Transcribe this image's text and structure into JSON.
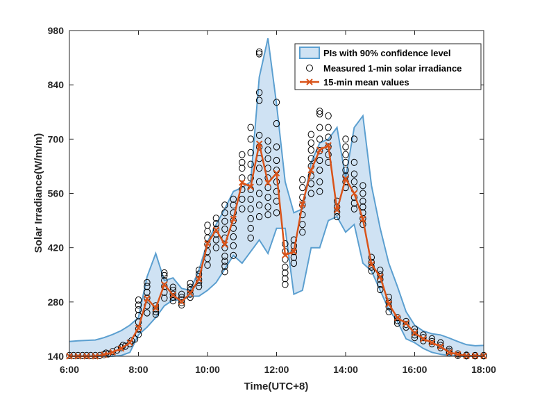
{
  "chart_data": {
    "type": "line",
    "xlabel": "Time(UTC+8)",
    "ylabel": "Solar Irradiance(W/m/m)",
    "xlim": [
      6,
      18
    ],
    "ylim": [
      140,
      980
    ],
    "x_ticks": [
      6,
      8,
      10,
      12,
      14,
      16,
      18
    ],
    "x_tick_labels": [
      "6:00",
      "8:00",
      "10:00",
      "12:00",
      "14:00",
      "16:00",
      "18:00"
    ],
    "y_ticks": [
      140,
      280,
      420,
      560,
      700,
      840,
      980
    ],
    "y_tick_labels": [
      "140",
      "280",
      "420",
      "560",
      "700",
      "840",
      "980"
    ],
    "grid": false,
    "legend_position": "top-right",
    "legend": [
      "PIs with 90% confidence level",
      "Measured 1-min solar irradiance",
      "15-min mean values"
    ],
    "colors": {
      "band_fill": "#cfe2f3",
      "band_edge": "#5b9fd0",
      "mean_line": "#d95319",
      "scatter": "#000000"
    },
    "time_grid": [
      6.0,
      6.25,
      6.5,
      6.75,
      7.0,
      7.25,
      7.5,
      7.75,
      8.0,
      8.25,
      8.5,
      8.75,
      9.0,
      9.25,
      9.5,
      9.75,
      10.0,
      10.25,
      10.5,
      10.75,
      11.0,
      11.25,
      11.5,
      11.75,
      12.0,
      12.25,
      12.5,
      12.75,
      13.0,
      13.25,
      13.5,
      13.75,
      14.0,
      14.25,
      14.5,
      14.75,
      15.0,
      15.25,
      15.5,
      15.75,
      16.0,
      16.25,
      16.5,
      16.75,
      17.0,
      17.25,
      17.5,
      17.75,
      18.0
    ],
    "pi_upper": [
      178,
      180,
      181,
      182,
      188,
      196,
      206,
      220,
      240,
      345,
      405,
      335,
      342,
      315,
      310,
      362,
      435,
      480,
      520,
      565,
      575,
      590,
      860,
      960,
      790,
      590,
      510,
      520,
      640,
      690,
      700,
      730,
      600,
      730,
      760,
      580,
      470,
      380,
      320,
      255,
      220,
      205,
      198,
      195,
      187,
      178,
      170,
      167,
      168
    ],
    "pi_lower": [
      140,
      140,
      140,
      140,
      140,
      140,
      142,
      150,
      195,
      215,
      240,
      270,
      285,
      285,
      295,
      295,
      310,
      330,
      365,
      400,
      380,
      410,
      440,
      405,
      470,
      470,
      300,
      310,
      420,
      420,
      490,
      500,
      460,
      480,
      380,
      360,
      310,
      260,
      230,
      185,
      175,
      160,
      150,
      145,
      142,
      140,
      140,
      140,
      140
    ],
    "mean_15min": [
      140,
      140,
      140,
      140,
      144,
      150,
      160,
      175,
      213,
      289,
      264,
      325,
      298,
      281,
      302,
      339,
      431,
      466,
      428,
      494,
      588,
      577,
      688,
      587,
      612,
      401,
      410,
      532,
      620,
      672,
      684,
      517,
      598,
      560,
      494,
      377,
      345,
      275,
      239,
      225,
      200,
      185,
      175,
      165,
      150,
      145,
      141,
      141,
      141
    ],
    "measured_1min": [
      [
        6.0,
        142
      ],
      [
        6.12,
        142
      ],
      [
        6.25,
        142
      ],
      [
        6.38,
        142
      ],
      [
        6.5,
        142
      ],
      [
        6.62,
        142
      ],
      [
        6.75,
        142
      ],
      [
        6.88,
        142
      ],
      [
        7.0,
        144
      ],
      [
        7.06,
        148
      ],
      [
        7.12,
        146
      ],
      [
        7.25,
        152
      ],
      [
        7.38,
        156
      ],
      [
        7.5,
        162
      ],
      [
        7.55,
        168
      ],
      [
        7.62,
        166
      ],
      [
        7.75,
        172
      ],
      [
        7.8,
        180
      ],
      [
        7.9,
        184
      ],
      [
        8.0,
        196
      ],
      [
        8.0,
        210
      ],
      [
        8.0,
        228
      ],
      [
        8.0,
        245
      ],
      [
        8.0,
        260
      ],
      [
        8.0,
        272
      ],
      [
        8.0,
        285
      ],
      [
        8.25,
        252
      ],
      [
        8.25,
        270
      ],
      [
        8.25,
        290
      ],
      [
        8.25,
        305
      ],
      [
        8.25,
        320
      ],
      [
        8.25,
        330
      ],
      [
        8.5,
        248
      ],
      [
        8.5,
        255
      ],
      [
        8.5,
        262
      ],
      [
        8.5,
        270
      ],
      [
        8.75,
        290
      ],
      [
        8.75,
        305
      ],
      [
        8.75,
        320
      ],
      [
        8.75,
        335
      ],
      [
        8.75,
        348
      ],
      [
        8.75,
        355
      ],
      [
        9.0,
        283
      ],
      [
        9.0,
        292
      ],
      [
        9.0,
        300
      ],
      [
        9.0,
        310
      ],
      [
        9.0,
        318
      ],
      [
        9.25,
        272
      ],
      [
        9.25,
        278
      ],
      [
        9.25,
        285
      ],
      [
        9.25,
        292
      ],
      [
        9.25,
        300
      ],
      [
        9.5,
        292
      ],
      [
        9.5,
        300
      ],
      [
        9.5,
        310
      ],
      [
        9.5,
        318
      ],
      [
        9.5,
        328
      ],
      [
        9.75,
        320
      ],
      [
        9.75,
        330
      ],
      [
        9.75,
        338
      ],
      [
        9.75,
        352
      ],
      [
        9.75,
        362
      ],
      [
        10.0,
        375
      ],
      [
        10.0,
        392
      ],
      [
        10.0,
        410
      ],
      [
        10.0,
        428
      ],
      [
        10.0,
        445
      ],
      [
        10.0,
        462
      ],
      [
        10.0,
        478
      ],
      [
        10.25,
        420
      ],
      [
        10.25,
        440
      ],
      [
        10.25,
        455
      ],
      [
        10.25,
        468
      ],
      [
        10.25,
        482
      ],
      [
        10.25,
        496
      ],
      [
        10.5,
        358
      ],
      [
        10.5,
        372
      ],
      [
        10.5,
        385
      ],
      [
        10.5,
        398
      ],
      [
        10.5,
        420
      ],
      [
        10.5,
        445
      ],
      [
        10.5,
        468
      ],
      [
        10.5,
        488
      ],
      [
        10.5,
        510
      ],
      [
        10.5,
        530
      ],
      [
        10.75,
        400
      ],
      [
        10.75,
        425
      ],
      [
        10.75,
        448
      ],
      [
        10.75,
        470
      ],
      [
        10.75,
        490
      ],
      [
        10.75,
        510
      ],
      [
        10.75,
        530
      ],
      [
        10.75,
        545
      ],
      [
        11.0,
        520
      ],
      [
        11.0,
        545
      ],
      [
        11.0,
        570
      ],
      [
        11.0,
        600
      ],
      [
        11.0,
        625
      ],
      [
        11.0,
        640
      ],
      [
        11.0,
        660
      ],
      [
        11.25,
        445
      ],
      [
        11.25,
        470
      ],
      [
        11.25,
        495
      ],
      [
        11.25,
        520
      ],
      [
        11.25,
        545
      ],
      [
        11.25,
        570
      ],
      [
        11.25,
        600
      ],
      [
        11.25,
        635
      ],
      [
        11.25,
        665
      ],
      [
        11.25,
        700
      ],
      [
        11.25,
        730
      ],
      [
        11.5,
        500
      ],
      [
        11.5,
        530
      ],
      [
        11.5,
        560
      ],
      [
        11.5,
        590
      ],
      [
        11.5,
        625
      ],
      [
        11.5,
        650
      ],
      [
        11.5,
        680
      ],
      [
        11.5,
        710
      ],
      [
        11.5,
        800
      ],
      [
        11.5,
        820
      ],
      [
        11.5,
        920
      ],
      [
        11.5,
        925
      ],
      [
        11.75,
        505
      ],
      [
        11.75,
        525
      ],
      [
        11.75,
        550
      ],
      [
        11.75,
        575
      ],
      [
        11.75,
        600
      ],
      [
        11.75,
        625
      ],
      [
        11.75,
        650
      ],
      [
        11.75,
        672
      ],
      [
        11.75,
        695
      ],
      [
        12.0,
        510
      ],
      [
        12.0,
        540
      ],
      [
        12.0,
        565
      ],
      [
        12.0,
        590
      ],
      [
        12.0,
        620
      ],
      [
        12.0,
        645
      ],
      [
        12.0,
        680
      ],
      [
        12.0,
        740
      ],
      [
        12.0,
        795
      ],
      [
        12.25,
        325
      ],
      [
        12.25,
        340
      ],
      [
        12.25,
        355
      ],
      [
        12.25,
        370
      ],
      [
        12.25,
        390
      ],
      [
        12.25,
        410
      ],
      [
        12.25,
        430
      ],
      [
        12.5,
        380
      ],
      [
        12.5,
        395
      ],
      [
        12.5,
        410
      ],
      [
        12.5,
        425
      ],
      [
        12.5,
        440
      ],
      [
        12.75,
        460
      ],
      [
        12.75,
        480
      ],
      [
        12.75,
        505
      ],
      [
        12.75,
        530
      ],
      [
        12.75,
        550
      ],
      [
        12.75,
        575
      ],
      [
        12.75,
        595
      ],
      [
        13.0,
        560
      ],
      [
        13.0,
        585
      ],
      [
        13.0,
        605
      ],
      [
        13.0,
        630
      ],
      [
        13.0,
        650
      ],
      [
        13.0,
        672
      ],
      [
        13.0,
        690
      ],
      [
        13.0,
        712
      ],
      [
        13.25,
        565
      ],
      [
        13.25,
        590
      ],
      [
        13.25,
        620
      ],
      [
        13.25,
        645
      ],
      [
        13.25,
        670
      ],
      [
        13.25,
        700
      ],
      [
        13.25,
        730
      ],
      [
        13.25,
        765
      ],
      [
        13.25,
        772
      ],
      [
        13.5,
        640
      ],
      [
        13.5,
        660
      ],
      [
        13.5,
        680
      ],
      [
        13.5,
        705
      ],
      [
        13.5,
        730
      ],
      [
        13.5,
        760
      ],
      [
        13.75,
        500
      ],
      [
        13.75,
        512
      ],
      [
        13.75,
        525
      ],
      [
        13.75,
        540
      ],
      [
        14.0,
        575
      ],
      [
        14.0,
        590
      ],
      [
        14.0,
        605
      ],
      [
        14.0,
        620
      ],
      [
        14.0,
        640
      ],
      [
        14.0,
        660
      ],
      [
        14.0,
        680
      ],
      [
        14.0,
        700
      ],
      [
        14.25,
        520
      ],
      [
        14.25,
        535
      ],
      [
        14.25,
        550
      ],
      [
        14.25,
        570
      ],
      [
        14.25,
        590
      ],
      [
        14.25,
        610
      ],
      [
        14.25,
        640
      ],
      [
        14.25,
        700
      ],
      [
        14.5,
        480
      ],
      [
        14.5,
        495
      ],
      [
        14.5,
        510
      ],
      [
        14.5,
        525
      ],
      [
        14.5,
        540
      ],
      [
        14.5,
        560
      ],
      [
        14.5,
        580
      ],
      [
        14.75,
        360
      ],
      [
        14.75,
        370
      ],
      [
        14.75,
        382
      ],
      [
        14.75,
        395
      ],
      [
        15.0,
        312
      ],
      [
        15.0,
        325
      ],
      [
        15.0,
        338
      ],
      [
        15.0,
        350
      ],
      [
        15.0,
        362
      ],
      [
        15.25,
        255
      ],
      [
        15.25,
        268
      ],
      [
        15.25,
        280
      ],
      [
        15.25,
        292
      ],
      [
        15.5,
        225
      ],
      [
        15.5,
        232
      ],
      [
        15.5,
        240
      ],
      [
        15.75,
        215
      ],
      [
        15.75,
        222
      ],
      [
        15.75,
        230
      ],
      [
        16.0,
        188
      ],
      [
        16.0,
        195
      ],
      [
        16.0,
        202
      ],
      [
        16.0,
        210
      ],
      [
        16.25,
        180
      ],
      [
        16.25,
        188
      ],
      [
        16.25,
        195
      ],
      [
        16.5,
        172
      ],
      [
        16.5,
        178
      ],
      [
        16.5,
        185
      ],
      [
        16.75,
        162
      ],
      [
        16.75,
        168
      ],
      [
        16.75,
        175
      ],
      [
        17.0,
        148
      ],
      [
        17.0,
        153
      ],
      [
        17.0,
        158
      ],
      [
        17.25,
        142
      ],
      [
        17.25,
        146
      ],
      [
        17.5,
        141
      ],
      [
        17.5,
        143
      ],
      [
        17.75,
        141
      ],
      [
        17.75,
        142
      ],
      [
        18.0,
        141
      ],
      [
        18.0,
        142
      ]
    ]
  }
}
